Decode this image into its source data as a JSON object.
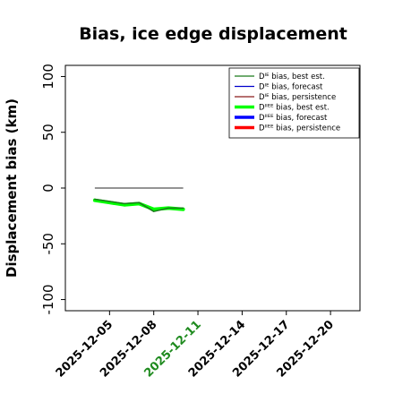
{
  "chart_data": {
    "type": "line",
    "title": "Bias, ice edge displacement",
    "xlabel": "",
    "ylabel": "Displacement bias (km)",
    "x_ticks": [
      "2025-12-05",
      "2025-12-08",
      "2025-12-11",
      "2025-12-14",
      "2025-12-17",
      "2025-12-20"
    ],
    "highlight_tick": "2025-12-11",
    "highlight_color": "#1e8a1e",
    "xlim": [
      "2025-12-02",
      "2025-12-22"
    ],
    "ylim": [
      -110,
      110
    ],
    "y_ticks": [
      100,
      50,
      0,
      -50,
      -100
    ],
    "grid": false,
    "legend_position": "top-right",
    "series": [
      {
        "name": "Dᴵᴱ bias, best est.",
        "color": "#1a7a1a",
        "width": 1.5,
        "x": [
          "2025-12-04",
          "2025-12-05",
          "2025-12-06",
          "2025-12-07",
          "2025-12-08",
          "2025-12-09",
          "2025-12-10"
        ],
        "values": [
          -10,
          -12,
          -14,
          -13,
          -21,
          -18,
          -18
        ]
      },
      {
        "name": "Dᴵᴱ bias, forecast",
        "color": "#0000cc",
        "width": 1.5,
        "x": [],
        "values": []
      },
      {
        "name": "Dᴵᴱ bias, persistence",
        "color": "#8b1a1a",
        "width": 1.5,
        "x": [],
        "values": []
      },
      {
        "name": "Dᴵᴵᴱᴱ bias, best est.",
        "color": "#00ff00",
        "width": 4,
        "x": [
          "2025-12-04",
          "2025-12-05",
          "2025-12-06",
          "2025-12-07",
          "2025-12-08",
          "2025-12-09",
          "2025-12-10"
        ],
        "values": [
          -11,
          -13,
          -15,
          -14,
          -19,
          -18,
          -19
        ]
      },
      {
        "name": "Dᴵᴵᴱᴱ bias, forecast",
        "color": "#0000ff",
        "width": 4,
        "x": [],
        "values": []
      },
      {
        "name": "Dᴵᴵᴱᴱ bias, persistence",
        "color": "#ff0000",
        "width": 4,
        "x": [],
        "values": []
      }
    ],
    "reference_line": {
      "y": 0,
      "x": [
        "2025-12-04",
        "2025-12-10"
      ],
      "color": "#555555"
    }
  }
}
